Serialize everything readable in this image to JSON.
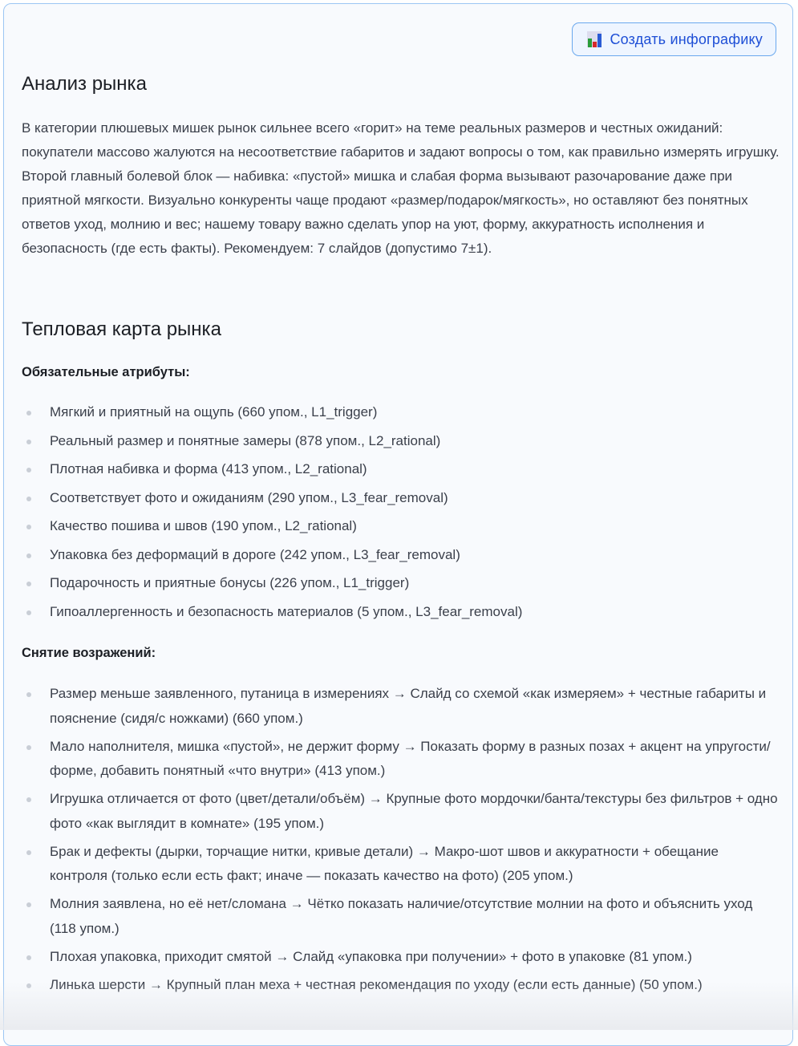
{
  "toolbar": {
    "create_infographic_label": "Создать инфографику",
    "icon": "bar-chart-icon"
  },
  "market_analysis": {
    "title": "Анализ рынка",
    "text": "В категории плюшевых мишек рынок сильнее всего «горит» на теме реальных размеров и честных ожиданий: покупатели массово жалуются на несоответствие габаритов и задают вопросы о том, как правильно измерять игрушку. Второй главный болевой блок — набивка: «пустой» мишка и слабая форма вызывают разочарование даже при приятной мягкости. Визуально конкуренты чаще продают «размер/подарок/мягкость», но оставляют без понятных ответов уход, молнию и вес; нашему товару важно сделать упор на уют, форму, аккуратность исполнения и безопасность (где есть факты). Рекомендуем: 7 слайдов (допустимо 7±1)."
  },
  "heatmap": {
    "title": "Тепловая карта рынка",
    "attributes_title": "Обязательные атрибуты:",
    "attributes": [
      "Мягкий и приятный на ощупь (660 упом., L1_trigger)",
      "Реальный размер и понятные замеры (878 упом., L2_rational)",
      "Плотная набивка и форма (413 упом., L2_rational)",
      "Соответствует фото и ожиданиям (290 упом., L3_fear_removal)",
      "Качество пошива и швов (190 упом., L2_rational)",
      "Упаковка без деформаций в дороге (242 упом., L3_fear_removal)",
      "Подарочность и приятные бонусы (226 упом., L1_trigger)",
      "Гипоаллергенность и безопасность материалов (5 упом., L3_fear_removal)"
    ],
    "objections_title": "Снятие возражений:",
    "objections": [
      "Размер меньше заявленного, путаница в измерениях → Слайд со схемой «как измеряем» + честные габариты и пояснение (сидя/с ножками) (660 упом.)",
      "Мало наполнителя, мишка «пустой», не держит форму → Показать форму в разных позах + акцент на упругости/форме, добавить понятный «что внутри» (413 упом.)",
      "Игрушка отличается от фото (цвет/детали/объём) → Крупные фото мордочки/банта/текстуры без фильтров + одно фото «как выглядит в комнате» (195 упом.)",
      "Брак и дефекты (дырки, торчащие нитки, кривые детали) → Макро-шот швов и аккуратности + обещание контроля (только если есть факт; иначе — показать качество на фото) (205 упом.)",
      "Молния заявлена, но её нет/сломана → Чётко показать наличие/отсутствие молнии на фото и объяснить уход (118 упом.)",
      "Плохая упаковка, приходит смятой → Слайд «упаковка при получении» + фото в упаковке (81 упом.)",
      "Линька шерсти → Крупный план меха + честная рекомендация по уходу (если есть данные) (50 упом.)"
    ]
  }
}
